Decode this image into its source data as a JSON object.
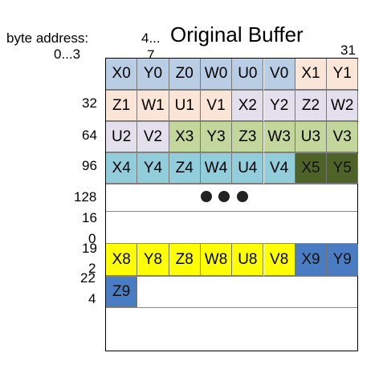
{
  "title": "Original Buffer",
  "labels": {
    "byte_address": "byte address:",
    "range_0_3": "0...3",
    "range_4_7_a": "4...",
    "range_4_7_b": "7",
    "end_31": "31"
  },
  "row_addresses": [
    "32",
    "64",
    "96",
    "128",
    "16",
    "0",
    "19",
    "2",
    "22",
    "4"
  ],
  "ellipsis": "● ● ●",
  "colors": {
    "x0_group": "#b9cde4",
    "x1_group": "#fbe5d6",
    "u2_group": "#e4dfec",
    "x3_group": "#c3d69b",
    "x4_group": "#92cddc",
    "x5_group": "#4f6228",
    "x8_group": "#ffff00",
    "x9_group": "#4a7cc4"
  },
  "rows": [
    {
      "cells": [
        {
          "t": "X0",
          "c": "#b9cde4"
        },
        {
          "t": "Y0",
          "c": "#b9cde4"
        },
        {
          "t": "Z0",
          "c": "#b9cde4"
        },
        {
          "t": "W0",
          "c": "#b9cde4"
        },
        {
          "t": "U0",
          "c": "#b9cde4"
        },
        {
          "t": "V0",
          "c": "#b9cde4"
        },
        {
          "t": "X1",
          "c": "#fbe5d6"
        },
        {
          "t": "Y1",
          "c": "#fbe5d6"
        }
      ]
    },
    {
      "cells": [
        {
          "t": "Z1",
          "c": "#fbe5d6"
        },
        {
          "t": "W1",
          "c": "#fbe5d6"
        },
        {
          "t": "U1",
          "c": "#fbe5d6"
        },
        {
          "t": "V1",
          "c": "#fbe5d6"
        },
        {
          "t": "X2",
          "c": "#e4dfec"
        },
        {
          "t": "Y2",
          "c": "#e4dfec"
        },
        {
          "t": "Z2",
          "c": "#e4dfec"
        },
        {
          "t": "W2",
          "c": "#e4dfec"
        }
      ]
    },
    {
      "cells": [
        {
          "t": "U2",
          "c": "#e4dfec"
        },
        {
          "t": "V2",
          "c": "#e4dfec"
        },
        {
          "t": "X3",
          "c": "#c3d69b"
        },
        {
          "t": "Y3",
          "c": "#c3d69b"
        },
        {
          "t": "Z3",
          "c": "#c3d69b"
        },
        {
          "t": "W3",
          "c": "#c3d69b"
        },
        {
          "t": "U3",
          "c": "#c3d69b"
        },
        {
          "t": "V3",
          "c": "#c3d69b"
        }
      ]
    },
    {
      "cells": [
        {
          "t": "X4",
          "c": "#92cddc"
        },
        {
          "t": "Y4",
          "c": "#92cddc"
        },
        {
          "t": "Z4",
          "c": "#92cddc"
        },
        {
          "t": "W4",
          "c": "#92cddc"
        },
        {
          "t": "U4",
          "c": "#92cddc"
        },
        {
          "t": "V4",
          "c": "#92cddc"
        },
        {
          "t": "X5",
          "c": "#4f6228"
        },
        {
          "t": "Y5",
          "c": "#4f6228"
        }
      ]
    },
    {
      "cells": []
    },
    {
      "cells": []
    },
    {
      "cells": [
        {
          "t": "X8",
          "c": "#ffff00"
        },
        {
          "t": "Y8",
          "c": "#ffff00"
        },
        {
          "t": "Z8",
          "c": "#ffff00"
        },
        {
          "t": "W8",
          "c": "#ffff00"
        },
        {
          "t": "U8",
          "c": "#ffff00"
        },
        {
          "t": "V8",
          "c": "#ffff00"
        },
        {
          "t": "X9",
          "c": "#4a7cc4"
        },
        {
          "t": "Y9",
          "c": "#4a7cc4"
        }
      ]
    },
    {
      "cells": [
        {
          "t": "Z9",
          "c": "#4a7cc4"
        }
      ]
    },
    {
      "cells": []
    }
  ]
}
